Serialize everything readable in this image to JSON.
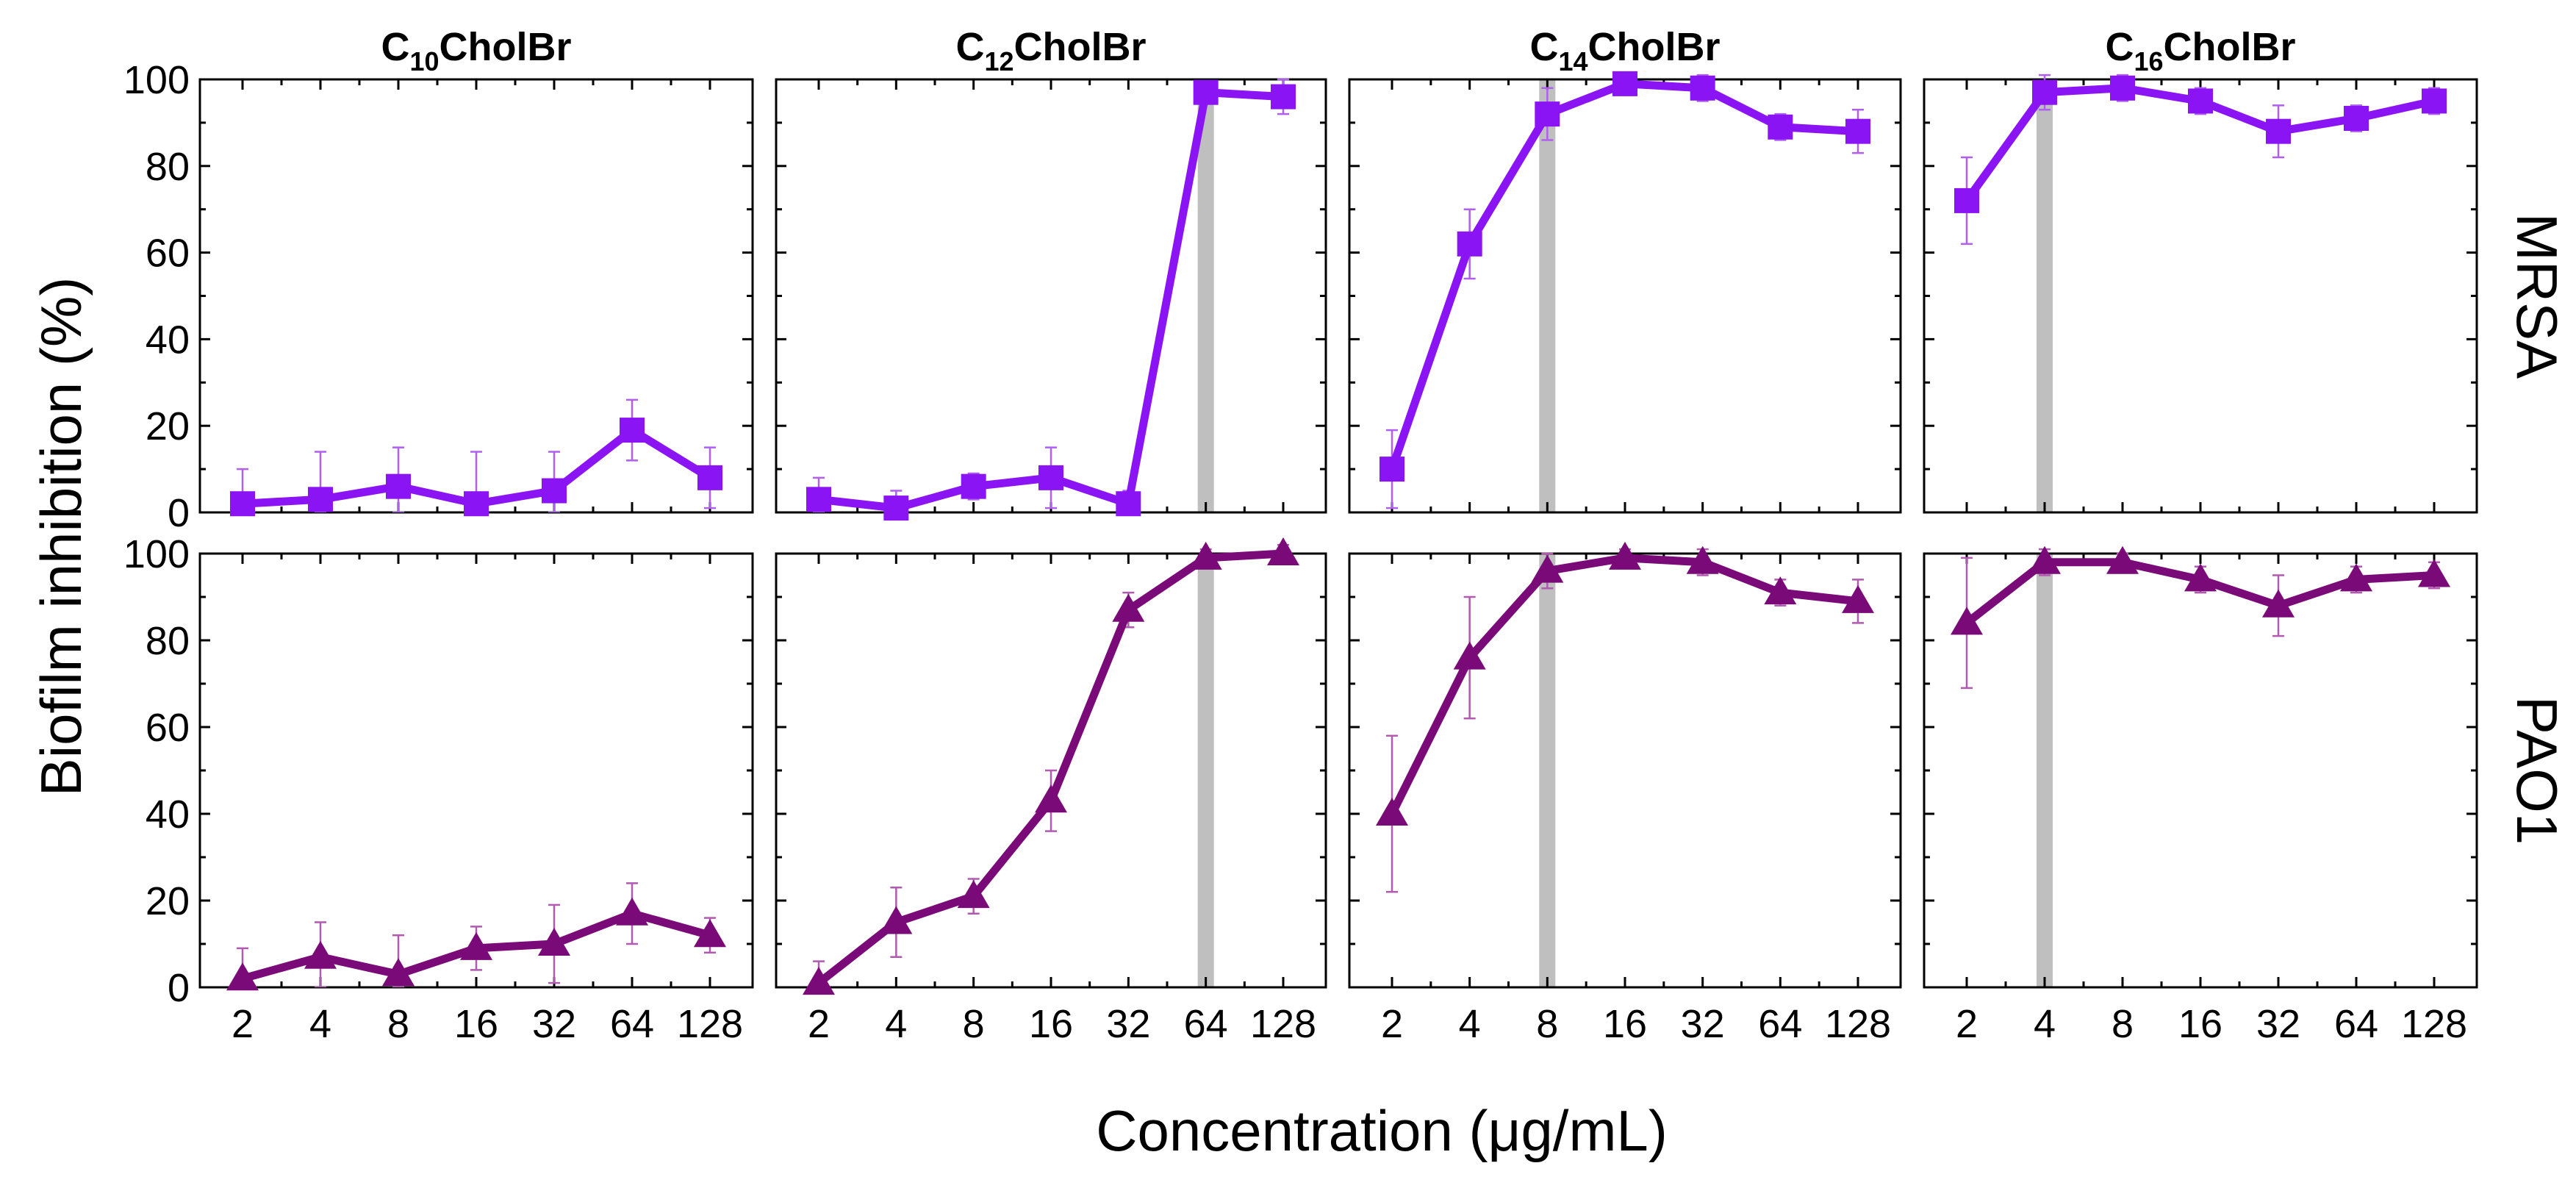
{
  "chart_data": {
    "type": "line",
    "title": "",
    "xlabel": "Concentration (μg/mL)",
    "ylabel": "Biofilm inhibition (%)",
    "x_scale": "log2",
    "categories": [
      2,
      4,
      8,
      16,
      32,
      64,
      128
    ],
    "category_labels": [
      "2",
      "4",
      "8",
      "16",
      "32",
      "64",
      "128"
    ],
    "ylim": [
      0,
      100
    ],
    "yticks": [
      0,
      20,
      40,
      60,
      80,
      100
    ],
    "ytick_labels": [
      "0",
      "20",
      "40",
      "60",
      "80",
      "100"
    ],
    "columns": [
      {
        "prefix": "C",
        "subscript": "10",
        "suffix": "CholBr"
      },
      {
        "prefix": "C",
        "subscript": "12",
        "suffix": "CholBr"
      },
      {
        "prefix": "C",
        "subscript": "14",
        "suffix": "CholBr"
      },
      {
        "prefix": "C",
        "subscript": "16",
        "suffix": "CholBr"
      }
    ],
    "rows": [
      {
        "label": "MRSA",
        "marker": "square",
        "color": "#8b14f5",
        "errcolor": "#b060f0"
      },
      {
        "label": "PAO1",
        "marker": "triangle",
        "color": "#7a0a78",
        "errcolor": "#b05ab0"
      }
    ],
    "reference_line_color": "#bfbfbf",
    "panels": [
      {
        "row": 0,
        "col": 0,
        "mic": null,
        "values": [
          2,
          3,
          6,
          2,
          5,
          19,
          8
        ],
        "errors": [
          8,
          11,
          9,
          12,
          9,
          7,
          7
        ]
      },
      {
        "row": 0,
        "col": 1,
        "mic": 64,
        "values": [
          3,
          1,
          6,
          8,
          2,
          97,
          96
        ],
        "errors": [
          5,
          4,
          3,
          7,
          3,
          2,
          4
        ]
      },
      {
        "row": 0,
        "col": 2,
        "mic": 8,
        "values": [
          10,
          62,
          92,
          99,
          98,
          89,
          88
        ],
        "errors": [
          9,
          8,
          6,
          2,
          3,
          3,
          5
        ]
      },
      {
        "row": 0,
        "col": 3,
        "mic": 4,
        "values": [
          72,
          97,
          98,
          95,
          88,
          91,
          95
        ],
        "errors": [
          10,
          4,
          3,
          3,
          6,
          3,
          3
        ]
      },
      {
        "row": 1,
        "col": 0,
        "mic": null,
        "values": [
          2,
          7,
          3,
          9,
          10,
          17,
          12
        ],
        "errors": [
          7,
          8,
          9,
          5,
          9,
          7,
          4
        ]
      },
      {
        "row": 1,
        "col": 1,
        "mic": 64,
        "values": [
          1,
          15,
          21,
          43,
          87,
          99,
          100
        ],
        "errors": [
          5,
          8,
          4,
          7,
          4,
          2,
          2
        ]
      },
      {
        "row": 1,
        "col": 2,
        "mic": 8,
        "values": [
          40,
          76,
          96,
          99,
          98,
          91,
          89
        ],
        "errors": [
          18,
          14,
          4,
          2,
          3,
          3,
          5
        ]
      },
      {
        "row": 1,
        "col": 3,
        "mic": 4,
        "values": [
          84,
          98,
          98,
          94,
          88,
          94,
          95
        ],
        "errors": [
          15,
          3,
          2,
          3,
          7,
          3,
          3
        ]
      }
    ]
  }
}
